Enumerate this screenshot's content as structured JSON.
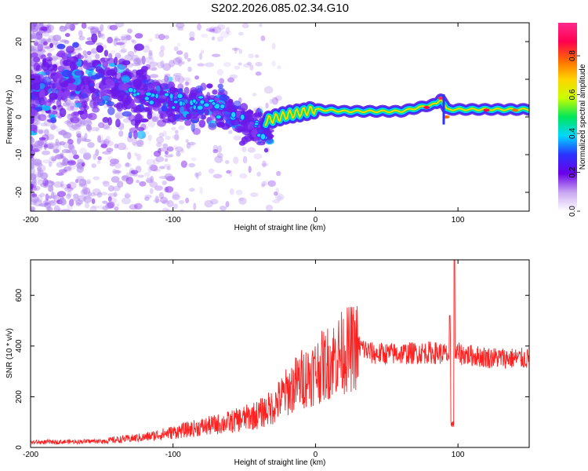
{
  "title": "S202.2026.085.02.34.G10",
  "chart_data": [
    {
      "type": "heatmap",
      "xlabel": "Height of straight line (km)",
      "ylabel": "Frequency (Hz)",
      "xlim": [
        -200,
        150
      ],
      "ylim": [
        -25,
        25
      ],
      "xticks": [
        -200,
        -100,
        0,
        100
      ],
      "yticks": [
        -20,
        -10,
        0,
        10,
        20
      ],
      "colorbar": {
        "label": "Normalized spectral amplitude",
        "range": [
          0.0,
          0.97
        ],
        "ticks": [
          "0.0",
          "0.2",
          "0.4",
          "0.6",
          "0.8"
        ],
        "colors": [
          "#ffffff",
          "#c9a6f2",
          "#6a00e8",
          "#2a33ff",
          "#00d7ff",
          "#00e65a",
          "#c8ff00",
          "#ffd400",
          "#ff6a00",
          "#ff0050",
          "#ff2a8c"
        ]
      },
      "features": {
        "scatter_band": [
          [
            -200,
            8
          ],
          [
            -150,
            9
          ],
          [
            -110,
            5
          ],
          [
            -80,
            3
          ],
          [
            -60,
            2
          ],
          [
            -45,
            -2
          ],
          [
            -35,
            -4
          ]
        ],
        "trace": [
          [
            -35,
            -1
          ],
          [
            -20,
            0.5
          ],
          [
            0,
            2
          ],
          [
            20,
            1.5
          ],
          [
            60,
            1.5
          ],
          [
            85,
            3.5
          ],
          [
            88,
            5
          ],
          [
            92,
            2
          ],
          [
            120,
            2
          ],
          [
            150,
            2
          ]
        ]
      }
    },
    {
      "type": "line",
      "xlabel": "Height of straight line (km)",
      "ylabel": "SNR (10 * v/v)",
      "xlim": [
        -200,
        150
      ],
      "ylim": [
        0,
        740
      ],
      "xticks": [
        -200,
        -100,
        0,
        100
      ],
      "yticks": [
        0,
        200,
        400,
        600
      ],
      "line_color": "#ff2020",
      "trend": {
        "x": [
          -200,
          -150,
          -120,
          -100,
          -80,
          -60,
          -40,
          -30,
          -20,
          -10,
          0,
          10,
          20,
          30,
          40,
          60,
          80,
          90,
          95,
          100,
          120,
          150
        ],
        "y": [
          20,
          25,
          40,
          60,
          80,
          100,
          130,
          160,
          220,
          270,
          300,
          340,
          380,
          400,
          370,
          370,
          375,
          370,
          360,
          370,
          355,
          350
        ]
      },
      "notches": [
        {
          "x": 96,
          "y": 80
        }
      ],
      "spikes": [
        {
          "x": 97,
          "y": 740
        },
        {
          "x": 94,
          "y": 520
        }
      ]
    }
  ]
}
